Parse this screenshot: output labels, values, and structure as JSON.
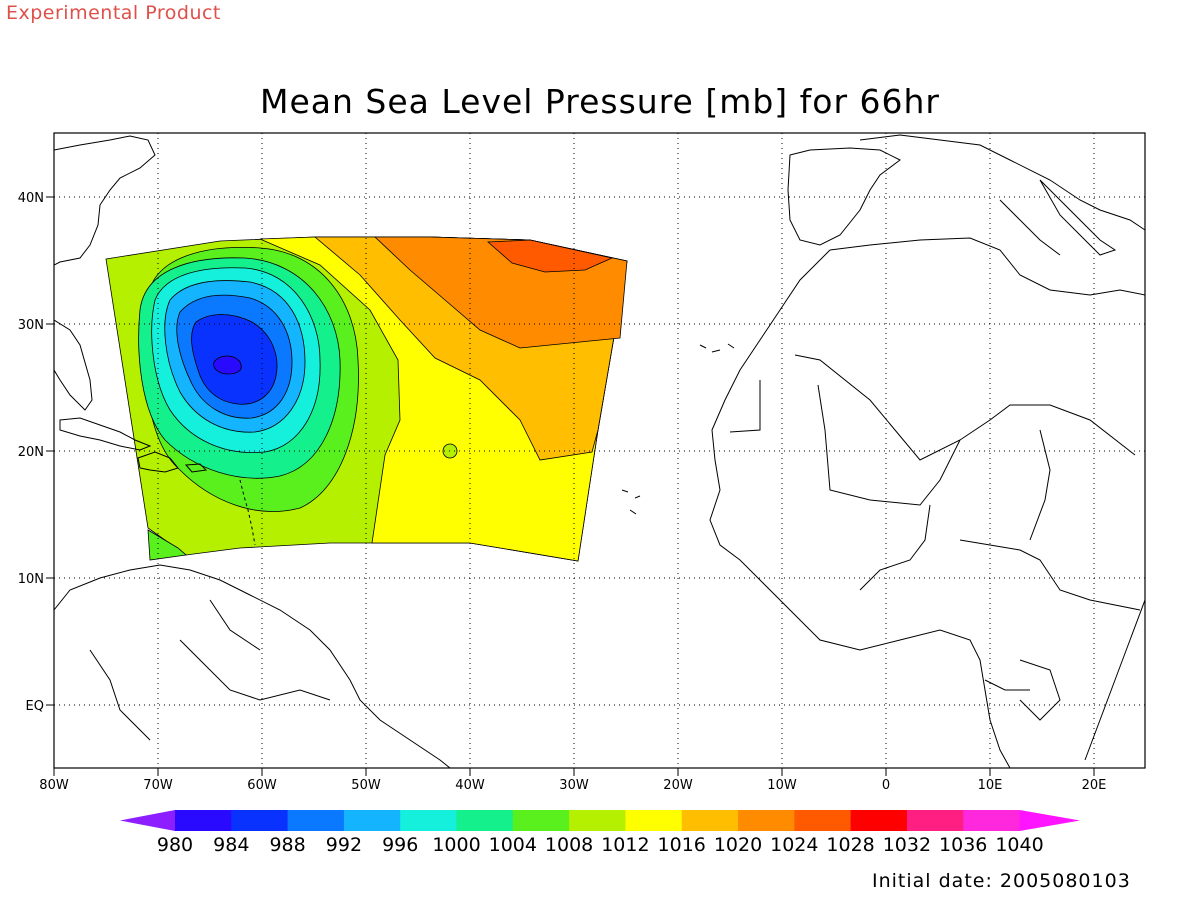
{
  "header": {
    "experimental_label": "Experimental Product"
  },
  "map": {
    "title": "Mean Sea Level Pressure [mb] for 66hr",
    "lon_labels": [
      "80W",
      "70W",
      "60W",
      "50W",
      "40W",
      "30W",
      "20W",
      "10W",
      "0",
      "10E",
      "20E"
    ],
    "lat_labels": [
      "40N",
      "30N",
      "20N",
      "10N",
      "EQ"
    ],
    "lon_range": [
      -80,
      25
    ],
    "lat_range": [
      -5,
      45
    ],
    "low_center": {
      "lon": -63,
      "lat": 26.7
    },
    "colors": {
      "land_outline": "#000000",
      "grid": "#000000"
    }
  },
  "colorbar": {
    "labels": [
      "980",
      "984",
      "988",
      "992",
      "996",
      "1000",
      "1004",
      "1008",
      "1012",
      "1016",
      "1020",
      "1024",
      "1028",
      "1032",
      "1036",
      "1040"
    ],
    "colors": [
      "#8c1eff",
      "#2a0aff",
      "#0a32ff",
      "#0a78ff",
      "#14b4ff",
      "#14f0dc",
      "#14f08c",
      "#5af01e",
      "#b4f000",
      "#ffff00",
      "#ffbe00",
      "#ff8c00",
      "#ff5a00",
      "#ff0000",
      "#ff1e82",
      "#ff28dc",
      "#ff14ff"
    ]
  },
  "footer": {
    "initial_date": "Initial date: 2005080103"
  }
}
